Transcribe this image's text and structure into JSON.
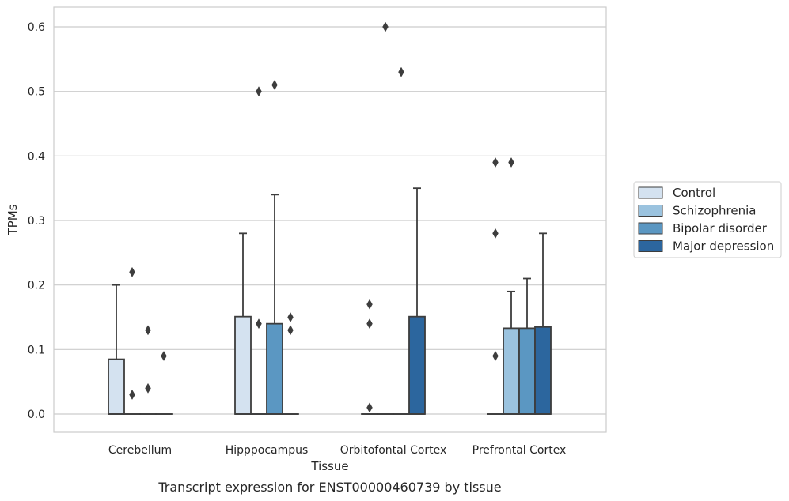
{
  "caption": "Transcript expression for ENST00000460739 by tissue",
  "chart_data": {
    "type": "box",
    "xlabel": "Tissue",
    "ylabel": "TPMs",
    "ylim": [
      -0.03,
      0.63
    ],
    "yticks": [
      "0.0",
      "0.1",
      "0.2",
      "0.3",
      "0.4",
      "0.5",
      "0.6"
    ],
    "grid": "horizontal",
    "legend_position": "right",
    "categories": [
      "Cerebellum",
      "Hipppocampus",
      "Orbitofontal Cortex",
      "Prefrontal Cortex"
    ],
    "series": [
      {
        "name": "Control",
        "color": "#d4e2f0",
        "boxes": [
          {
            "q1": 0.0,
            "median": 0.0,
            "q3": 0.085,
            "whisker_low": 0.0,
            "whisker_high": 0.2,
            "outliers": []
          },
          {
            "q1": 0.0,
            "median": 0.0,
            "q3": 0.151,
            "whisker_low": 0.0,
            "whisker_high": 0.28,
            "outliers": []
          },
          {
            "q1": 0.0,
            "median": 0.0,
            "q3": 0.0,
            "whisker_low": 0.0,
            "whisker_high": 0.0,
            "outliers": [
              0.01,
              0.14,
              0.17
            ]
          },
          {
            "q1": 0.0,
            "median": 0.0,
            "q3": 0.0,
            "whisker_low": 0.0,
            "whisker_high": 0.0,
            "outliers": [
              0.09,
              0.28,
              0.39
            ]
          }
        ]
      },
      {
        "name": "Schizophrenia",
        "color": "#9bc3df",
        "boxes": [
          {
            "q1": 0.0,
            "median": 0.0,
            "q3": 0.0,
            "whisker_low": 0.0,
            "whisker_high": 0.0,
            "outliers": [
              0.03,
              0.22
            ]
          },
          {
            "q1": 0.0,
            "median": 0.0,
            "q3": 0.0,
            "whisker_low": 0.0,
            "whisker_high": 0.0,
            "outliers": [
              0.14,
              0.5
            ]
          },
          {
            "q1": 0.0,
            "median": 0.0,
            "q3": 0.0,
            "whisker_low": 0.0,
            "whisker_high": 0.0,
            "outliers": [
              0.6
            ]
          },
          {
            "q1": 0.0,
            "median": 0.0,
            "q3": 0.133,
            "whisker_low": 0.0,
            "whisker_high": 0.19,
            "outliers": [
              0.39
            ]
          }
        ]
      },
      {
        "name": "Bipolar disorder",
        "color": "#5b97c2",
        "boxes": [
          {
            "q1": 0.0,
            "median": 0.0,
            "q3": 0.0,
            "whisker_low": 0.0,
            "whisker_high": 0.0,
            "outliers": [
              0.04,
              0.13
            ]
          },
          {
            "q1": 0.0,
            "median": 0.0,
            "q3": 0.14,
            "whisker_low": 0.0,
            "whisker_high": 0.34,
            "outliers": [
              0.51
            ]
          },
          {
            "q1": 0.0,
            "median": 0.0,
            "q3": 0.0,
            "whisker_low": 0.0,
            "whisker_high": 0.0,
            "outliers": [
              0.53
            ]
          },
          {
            "q1": 0.0,
            "median": 0.0,
            "q3": 0.133,
            "whisker_low": 0.0,
            "whisker_high": 0.21,
            "outliers": []
          }
        ]
      },
      {
        "name": "Major depression",
        "color": "#2c669e",
        "boxes": [
          {
            "q1": 0.0,
            "median": 0.0,
            "q3": 0.0,
            "whisker_low": 0.0,
            "whisker_high": 0.0,
            "outliers": [
              0.09
            ]
          },
          {
            "q1": 0.0,
            "median": 0.0,
            "q3": 0.0,
            "whisker_low": 0.0,
            "whisker_high": 0.0,
            "outliers": [
              0.13,
              0.15
            ]
          },
          {
            "q1": 0.0,
            "median": 0.0,
            "q3": 0.151,
            "whisker_low": 0.0,
            "whisker_high": 0.35,
            "outliers": []
          },
          {
            "q1": 0.0,
            "median": 0.0,
            "q3": 0.135,
            "whisker_low": 0.0,
            "whisker_high": 0.28,
            "outliers": []
          }
        ]
      }
    ]
  }
}
